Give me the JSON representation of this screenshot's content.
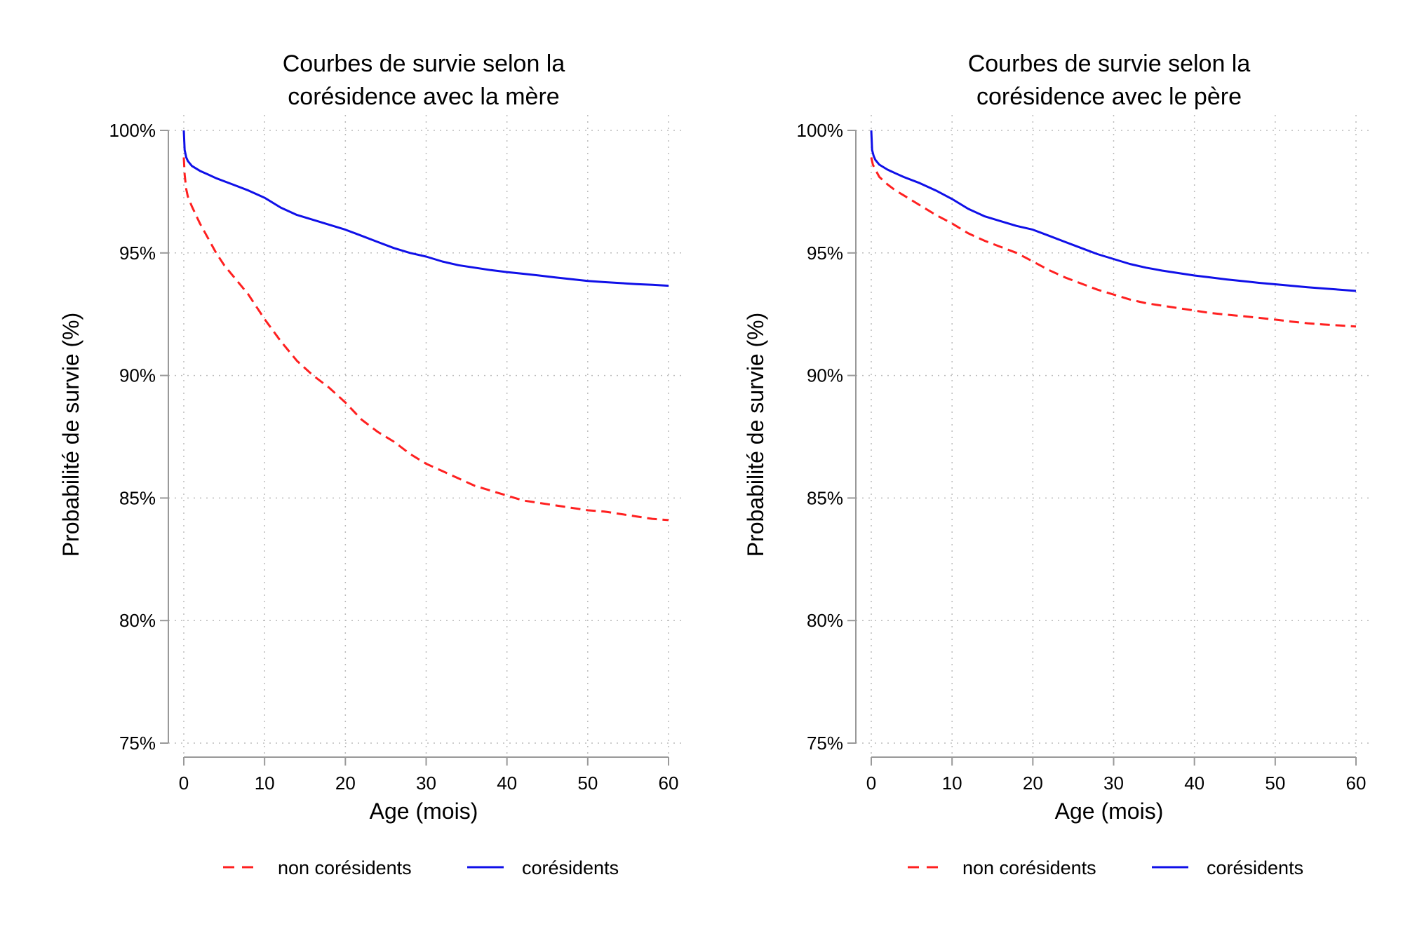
{
  "colors": {
    "non_coresidents": "#ff2020",
    "coresidents": "#1010e8",
    "axis": "#999999",
    "grid": "#bbbbbb",
    "text": "#000000"
  },
  "chart_data": [
    {
      "type": "line",
      "title_line1": "Courbes de survie selon la",
      "title_line2": "corésidence avec la mère",
      "xlabel": "Age (mois)",
      "ylabel": "Probabilité de survie (%)",
      "xlim": [
        0,
        60
      ],
      "ylim": [
        75,
        100
      ],
      "x_ticks": [
        0,
        10,
        20,
        30,
        40,
        50,
        60
      ],
      "x_tick_labels": [
        "0",
        "10",
        "20",
        "30",
        "40",
        "50",
        "60"
      ],
      "y_ticks": [
        75,
        80,
        85,
        90,
        95,
        100
      ],
      "y_tick_labels": [
        "75%",
        "80%",
        "85%",
        "90%",
        "95%",
        "100%"
      ],
      "grid": true,
      "legend_position": "bottom",
      "series": [
        {
          "name": "non corésidents",
          "style": "dashed",
          "x": [
            0,
            0.1,
            0.3,
            0.5,
            1,
            2,
            3,
            4,
            5,
            6,
            7,
            8,
            9,
            10,
            12,
            14,
            16,
            18,
            20,
            22,
            24,
            26,
            28,
            30,
            32,
            34,
            36,
            38,
            40,
            42,
            44,
            46,
            48,
            50,
            52,
            54,
            56,
            58,
            60
          ],
          "y": [
            98.9,
            98.2,
            97.6,
            97.3,
            96.9,
            96.2,
            95.6,
            95.0,
            94.5,
            94.1,
            93.7,
            93.3,
            92.8,
            92.3,
            91.4,
            90.6,
            90.0,
            89.5,
            88.9,
            88.2,
            87.7,
            87.3,
            86.8,
            86.4,
            86.1,
            85.8,
            85.5,
            85.3,
            85.1,
            84.9,
            84.8,
            84.7,
            84.6,
            84.5,
            84.45,
            84.35,
            84.25,
            84.15,
            84.1
          ]
        },
        {
          "name": "corésidents",
          "style": "solid",
          "x": [
            0,
            0.1,
            0.3,
            0.5,
            1,
            2,
            3,
            4,
            6,
            8,
            10,
            12,
            14,
            16,
            18,
            20,
            22,
            24,
            26,
            28,
            30,
            32,
            34,
            36,
            38,
            40,
            42,
            44,
            46,
            48,
            50,
            52,
            54,
            56,
            58,
            60
          ],
          "y": [
            100,
            99.2,
            98.9,
            98.75,
            98.55,
            98.35,
            98.2,
            98.05,
            97.8,
            97.55,
            97.25,
            96.85,
            96.55,
            96.35,
            96.15,
            95.95,
            95.7,
            95.45,
            95.2,
            95.0,
            94.85,
            94.65,
            94.5,
            94.4,
            94.3,
            94.22,
            94.15,
            94.08,
            94.0,
            93.93,
            93.86,
            93.81,
            93.77,
            93.73,
            93.7,
            93.66
          ]
        }
      ]
    },
    {
      "type": "line",
      "title_line1": "Courbes de survie selon la",
      "title_line2": "corésidence avec le père",
      "xlabel": "Age (mois)",
      "ylabel": "Probabilité de survie (%)",
      "xlim": [
        0,
        60
      ],
      "ylim": [
        75,
        100
      ],
      "x_ticks": [
        0,
        10,
        20,
        30,
        40,
        50,
        60
      ],
      "x_tick_labels": [
        "0",
        "10",
        "20",
        "30",
        "40",
        "50",
        "60"
      ],
      "y_ticks": [
        75,
        80,
        85,
        90,
        95,
        100
      ],
      "y_tick_labels": [
        "75%",
        "80%",
        "85%",
        "90%",
        "95%",
        "100%"
      ],
      "grid": true,
      "legend_position": "bottom",
      "series": [
        {
          "name": "non corésidents",
          "style": "dashed",
          "x": [
            0,
            0.2,
            0.5,
            1,
            2,
            3,
            4,
            5,
            6,
            8,
            10,
            12,
            14,
            16,
            18,
            20,
            22,
            24,
            26,
            28,
            30,
            32,
            34,
            36,
            38,
            40,
            42,
            44,
            46,
            48,
            50,
            52,
            54,
            56,
            58,
            60
          ],
          "y": [
            98.9,
            98.6,
            98.4,
            98.1,
            97.8,
            97.55,
            97.35,
            97.15,
            96.95,
            96.55,
            96.2,
            95.8,
            95.5,
            95.25,
            95.0,
            94.65,
            94.3,
            94.0,
            93.75,
            93.5,
            93.3,
            93.1,
            92.95,
            92.85,
            92.75,
            92.65,
            92.55,
            92.48,
            92.42,
            92.35,
            92.28,
            92.2,
            92.13,
            92.08,
            92.04,
            92.0
          ]
        },
        {
          "name": "corésidents",
          "style": "solid",
          "x": [
            0,
            0.1,
            0.3,
            0.5,
            1,
            2,
            3,
            4,
            6,
            8,
            10,
            12,
            14,
            16,
            18,
            20,
            22,
            24,
            26,
            28,
            30,
            32,
            34,
            36,
            38,
            40,
            42,
            44,
            46,
            48,
            50,
            52,
            54,
            56,
            58,
            60
          ],
          "y": [
            100,
            99.2,
            98.95,
            98.8,
            98.6,
            98.4,
            98.25,
            98.1,
            97.85,
            97.55,
            97.2,
            96.8,
            96.5,
            96.3,
            96.1,
            95.95,
            95.7,
            95.45,
            95.2,
            94.95,
            94.75,
            94.55,
            94.4,
            94.28,
            94.18,
            94.08,
            94.0,
            93.92,
            93.85,
            93.78,
            93.72,
            93.66,
            93.6,
            93.55,
            93.5,
            93.45
          ]
        }
      ]
    }
  ]
}
